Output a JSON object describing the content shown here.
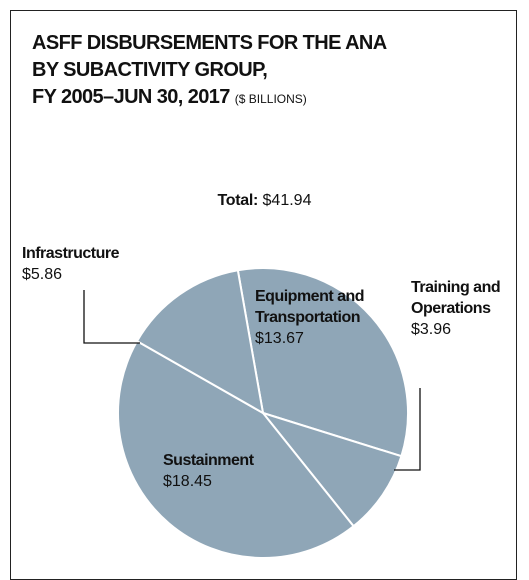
{
  "chart_data": {
    "type": "pie",
    "title": [
      "ASFF DISBURSEMENTS FOR THE ANA",
      "BY SUBACTIVITY GROUP,",
      "FY 2005–JUN 30, 2017"
    ],
    "unit": "($ BILLIONS)",
    "total": {
      "label": "Total:",
      "value": 41.94,
      "value_label": "$41.94"
    },
    "categories": [
      "Equipment and Transportation",
      "Training and Operations",
      "Sustainment",
      "Infrastructure"
    ],
    "values": [
      13.67,
      3.96,
      18.45,
      5.86
    ],
    "value_labels": [
      "$13.67",
      "$3.96",
      "$18.45",
      "$5.86"
    ],
    "color": "#8fa6b7"
  }
}
